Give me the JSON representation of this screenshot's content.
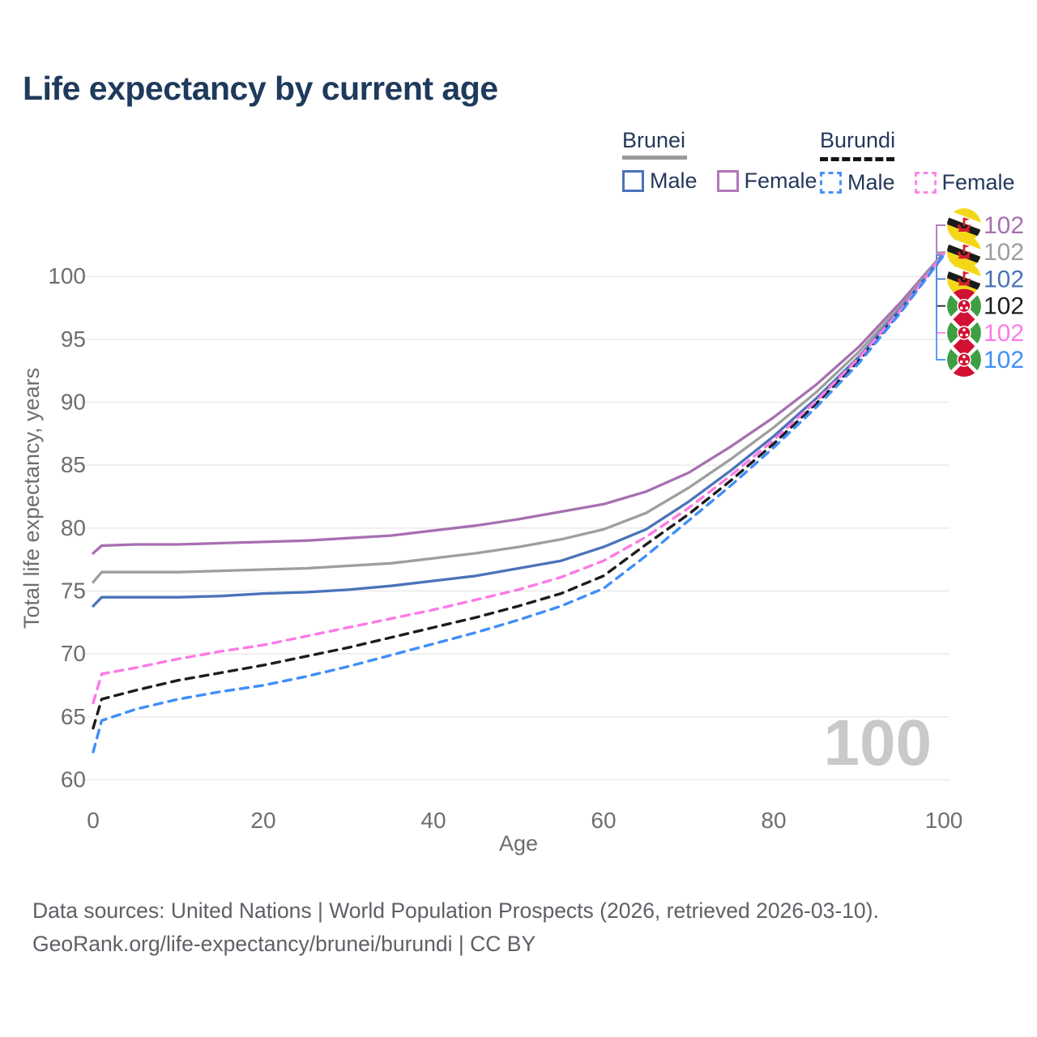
{
  "title": "Life expectancy by current age",
  "watermark_age": "100",
  "legend": {
    "groups": [
      {
        "label": "Brunei",
        "line_style": "solid",
        "line_color": "#9a9a9a",
        "items": [
          {
            "label": "Male",
            "color": "#4a73b8"
          },
          {
            "label": "Female",
            "color": "#b277ba"
          }
        ]
      },
      {
        "label": "Burundi",
        "line_style": "dashed",
        "line_color": "#151515",
        "items": [
          {
            "label": "Male",
            "color": "#4a90f8"
          },
          {
            "label": "Female",
            "color": "#fc86e6"
          }
        ]
      }
    ]
  },
  "axes": {
    "x": {
      "label": "Age",
      "ticks": [
        0,
        20,
        40,
        60,
        80,
        100
      ]
    },
    "y": {
      "label": "Total life expectancy, years",
      "ticks": [
        60,
        65,
        70,
        75,
        80,
        85,
        90,
        95,
        100
      ]
    }
  },
  "footer": {
    "line1": "Data sources: United Nations | World Population Prospects (2026, retrieved 2026-03-10).",
    "line2": "GeoRank.org/life-expectancy/brunei/burundi | CC BY"
  },
  "chart_data": {
    "type": "line",
    "title": "Life expectancy by current age",
    "xlabel": "Age",
    "ylabel": "Total life expectancy, years",
    "xlim": [
      0,
      100
    ],
    "ylim": [
      58.5,
      103
    ],
    "grid": "horizontal",
    "x_ages": [
      0,
      1,
      5,
      10,
      15,
      20,
      25,
      30,
      35,
      40,
      45,
      50,
      55,
      60,
      65,
      70,
      75,
      80,
      85,
      90,
      95,
      100
    ],
    "series": [
      {
        "name": "Brunei Female",
        "country": "Brunei",
        "sex": "Female",
        "flag": "brunei",
        "row": 0,
        "color": "#a76fb1",
        "dashed": false,
        "end_label": "102",
        "values": [
          78.0,
          78.6,
          78.7,
          78.7,
          78.8,
          78.9,
          79.0,
          79.2,
          79.4,
          79.8,
          80.2,
          80.7,
          81.3,
          81.9,
          82.9,
          84.4,
          86.5,
          88.8,
          91.4,
          94.4,
          98.0,
          101.9
        ]
      },
      {
        "name": "Brunei Total",
        "country": "Brunei",
        "sex": "Both",
        "flag": "brunei",
        "row": 1,
        "color": "#9e9e9e",
        "dashed": false,
        "end_label": "102",
        "values": [
          75.7,
          76.5,
          76.5,
          76.5,
          76.6,
          76.7,
          76.8,
          77.0,
          77.2,
          77.6,
          78.0,
          78.5,
          79.1,
          79.9,
          81.2,
          83.2,
          85.5,
          88.0,
          90.8,
          94.0,
          97.7,
          101.9
        ]
      },
      {
        "name": "Brunei Male",
        "country": "Brunei",
        "sex": "Male",
        "flag": "brunei",
        "row": 2,
        "color": "#4a73b8",
        "dashed": false,
        "end_label": "102",
        "values": [
          73.8,
          74.5,
          74.5,
          74.5,
          74.6,
          74.8,
          74.9,
          75.1,
          75.4,
          75.8,
          76.2,
          76.8,
          77.4,
          78.5,
          79.9,
          82.1,
          84.6,
          87.3,
          90.3,
          93.6,
          97.5,
          101.8
        ]
      },
      {
        "name": "Burundi Total",
        "country": "Burundi",
        "sex": "Both",
        "flag": "burundi",
        "row": 3,
        "color": "#1c1c1c",
        "dashed": true,
        "end_label": "102",
        "values": [
          64.1,
          66.4,
          67.1,
          67.9,
          68.5,
          69.1,
          69.8,
          70.5,
          71.3,
          72.1,
          72.9,
          73.8,
          74.8,
          76.2,
          78.7,
          81.1,
          83.8,
          86.7,
          89.9,
          93.3,
          97.3,
          101.7
        ]
      },
      {
        "name": "Burundi Female",
        "country": "Burundi",
        "sex": "Female",
        "flag": "burundi",
        "row": 4,
        "color": "#fd7ae6",
        "dashed": true,
        "end_label": "102",
        "values": [
          66.1,
          68.4,
          68.9,
          69.6,
          70.2,
          70.7,
          71.4,
          72.1,
          72.8,
          73.5,
          74.3,
          75.1,
          76.1,
          77.4,
          79.3,
          81.6,
          84.2,
          87.0,
          90.1,
          93.5,
          97.4,
          101.8
        ]
      },
      {
        "name": "Burundi Male",
        "country": "Burundi",
        "sex": "Male",
        "flag": "burundi",
        "row": 5,
        "color": "#3f8efa",
        "dashed": true,
        "end_label": "102",
        "values": [
          62.2,
          64.7,
          65.6,
          66.4,
          67.0,
          67.5,
          68.2,
          69.0,
          69.9,
          70.8,
          71.7,
          72.7,
          73.8,
          75.2,
          77.8,
          80.6,
          83.4,
          86.4,
          89.6,
          93.1,
          97.2,
          101.7
        ]
      }
    ]
  }
}
